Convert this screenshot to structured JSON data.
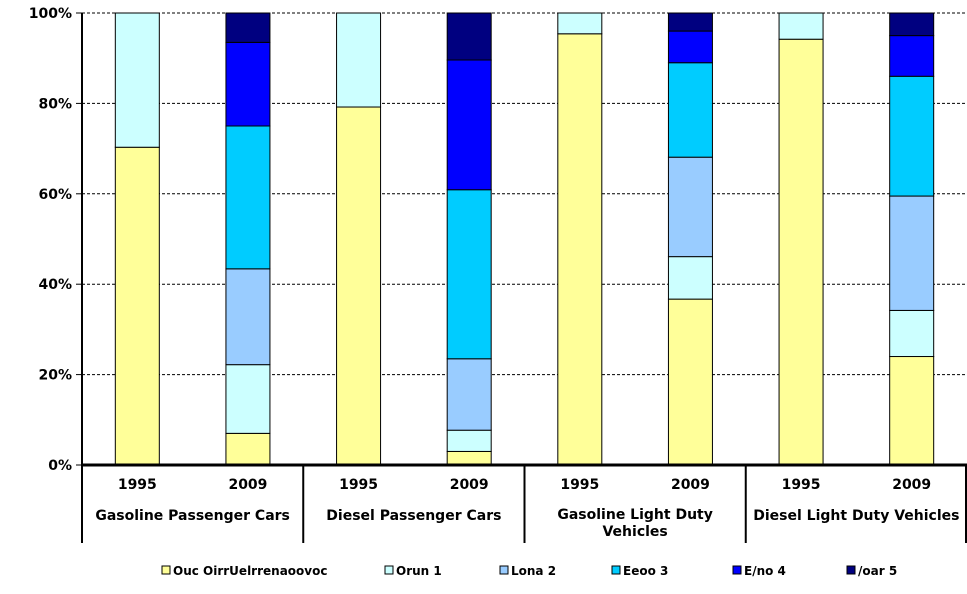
{
  "chart_data": {
    "type": "bar",
    "stacked": true,
    "grid": true,
    "legend_position": "bottom",
    "ylim": [
      0,
      100
    ],
    "ytick_labels": [
      "0%",
      "20%",
      "40%",
      "60%",
      "80%",
      "100%"
    ],
    "ytick_values": [
      0,
      20,
      40,
      60,
      80,
      100
    ],
    "groups": [
      "Gasoline Passenger Cars",
      "Diesel Passenger Cars",
      "Gasoline Light Duty Vehicles",
      "Diesel Light Duty Vehicles"
    ],
    "categories": [
      "1995",
      "2009",
      "1995",
      "2009",
      "1995",
      "2009",
      "1995",
      "2009"
    ],
    "series": [
      {
        "name": "Ouc OirrUelrrenaoovoc",
        "color": "#FFFF99",
        "values": [
          70.3,
          7.0,
          79.2,
          3.0,
          95.4,
          36.7,
          94.2,
          24.0
        ]
      },
      {
        "name": "Orun 1",
        "color": "#CCFFFF",
        "values": [
          29.7,
          15.2,
          20.8,
          4.7,
          4.6,
          9.4,
          5.8,
          10.2
        ]
      },
      {
        "name": "Lona 2",
        "color": "#99CCFF",
        "values": [
          0,
          21.2,
          0,
          15.8,
          0,
          22.0,
          0,
          25.3
        ]
      },
      {
        "name": "Eeoo 3",
        "color": "#00CCFF",
        "values": [
          0,
          31.6,
          0,
          37.4,
          0,
          20.9,
          0,
          26.5
        ]
      },
      {
        "name": "E/no 4",
        "color": "#0000FF",
        "values": [
          0,
          18.5,
          0,
          28.7,
          0,
          7.0,
          0,
          9.0
        ]
      },
      {
        "name": "/oar 5",
        "color": "#000080",
        "values": [
          0,
          6.5,
          0,
          10.4,
          0,
          4.0,
          0,
          5.0
        ]
      }
    ]
  }
}
